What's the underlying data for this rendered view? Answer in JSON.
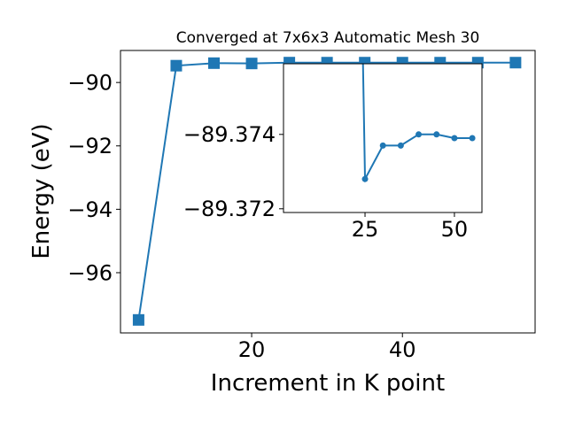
{
  "chart_data": {
    "type": "line",
    "title": "Converged at 7x6x3 Automatic Mesh 30",
    "xlabel": "Increment in K point",
    "ylabel": "Energy (eV)",
    "x": [
      5,
      10,
      15,
      20,
      25,
      30,
      35,
      40,
      45,
      50,
      55
    ],
    "series": [
      {
        "color": "#1f77b4",
        "values": [
          -97.49,
          -89.47,
          -89.39,
          -89.4,
          -89.3728,
          -89.3737,
          -89.3737,
          -89.374,
          -89.374,
          -89.3739,
          -89.3739
        ]
      }
    ],
    "xlim": [
      2.6,
      57.6
    ],
    "ylim": [
      -97.9,
      -88.99
    ],
    "xticks": [
      20,
      40
    ],
    "yticks": [
      {
        "value": -96,
        "label": "−96"
      },
      {
        "value": -94,
        "label": "−94"
      },
      {
        "value": -92,
        "label": "−92"
      },
      {
        "value": -90,
        "label": "−90"
      }
    ],
    "inset": {
      "xlim": [
        2.2,
        57.7
      ],
      "ylim": [
        -89.3719,
        -89.3759
      ],
      "xticks": [
        25,
        50
      ],
      "yticks": [
        {
          "value": -89.372,
          "label": "−89.372"
        },
        {
          "value": -89.374,
          "label": "−89.374"
        }
      ]
    }
  }
}
